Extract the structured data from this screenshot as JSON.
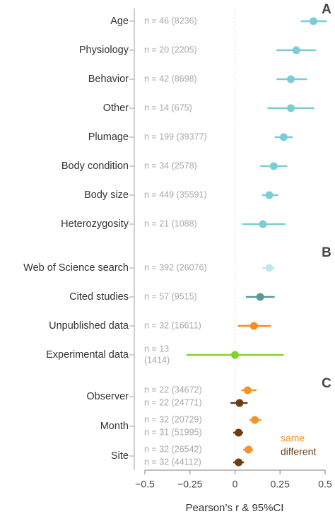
{
  "chart_data": {
    "type": "forest",
    "xlabel": "Pearson’s r & 95%CI",
    "xlim": [
      -0.5,
      0.5
    ],
    "xticks": [
      {
        "value": -0.5,
        "label": "−0.5"
      },
      {
        "value": -0.25,
        "label": "−0.25"
      },
      0,
      0.25,
      0.5
    ],
    "panels": [
      {
        "label": "A",
        "rows": [
          {
            "label": "Age",
            "n": [
              "n = 46 (8236)"
            ],
            "value": 0.435,
            "ci": [
              0.365,
              0.51
            ],
            "color": "#7ccdd3"
          },
          {
            "label": "Physiology",
            "n": [
              "n = 20 (2205)"
            ],
            "value": 0.34,
            "ci": [
              0.23,
              0.45
            ],
            "color": "#7ccdd3"
          },
          {
            "label": "Behavior",
            "n": [
              "n = 42 (8698)"
            ],
            "value": 0.31,
            "ci": [
              0.23,
              0.4
            ],
            "color": "#7ccdd3"
          },
          {
            "label": "Other",
            "n": [
              "n = 14 (675)"
            ],
            "value": 0.31,
            "ci": [
              0.18,
              0.44
            ],
            "color": "#7ccdd3"
          },
          {
            "label": "Plumage",
            "n": [
              "n = 199 (39377)"
            ],
            "value": 0.27,
            "ci": [
              0.22,
              0.32
            ],
            "color": "#7ccdd3"
          },
          {
            "label": "Body condition",
            "n": [
              "n = 34 (2578)"
            ],
            "value": 0.215,
            "ci": [
              0.14,
              0.29
            ],
            "color": "#7ccdd3"
          },
          {
            "label": "Body size",
            "n": [
              "n = 449 (35591)"
            ],
            "value": 0.19,
            "ci": [
              0.15,
              0.24
            ],
            "color": "#7ccdd3"
          },
          {
            "label": "Heterozygosity",
            "n": [
              "n = 21 (1088)"
            ],
            "value": 0.155,
            "ci": [
              0.04,
              0.28
            ],
            "color": "#7ccdd3"
          }
        ]
      },
      {
        "label": "B",
        "rows": [
          {
            "label": "Web of Science search",
            "n": [
              "n = 392 (26076)"
            ],
            "value": 0.19,
            "ci": [
              0.15,
              0.22
            ],
            "color": "#bfe8ee"
          },
          {
            "label": "Cited studies",
            "n": [
              "n = 57 (9515)"
            ],
            "value": 0.14,
            "ci": [
              0.06,
              0.22
            ],
            "color": "#5a979b"
          },
          {
            "label": "Unpublished data",
            "n": [
              "n = 32 (16611)"
            ],
            "value": 0.105,
            "ci": [
              0.015,
              0.2
            ],
            "color": "#f0901f"
          },
          {
            "label": "Experimental data",
            "n": [
              "n = 13",
              "(1414)"
            ],
            "value": 0.0,
            "ci": [
              -0.27,
              0.27
            ],
            "color": "#80d42a"
          }
        ]
      },
      {
        "label": "C",
        "series": [
          {
            "name": "same",
            "color": "#f0952a"
          },
          {
            "name": "different",
            "color": "#6e3c12"
          }
        ],
        "groups": [
          {
            "label": "Observer",
            "n": [
              "n = 22 (34672)",
              "n = 22 (24771)"
            ],
            "values": [
              0.07,
              0.025
            ],
            "ci": [
              [
                0.035,
                0.12
              ],
              [
                -0.025,
                0.07
              ]
            ]
          },
          {
            "label": "Month",
            "n": [
              "n = 32 (20729)",
              "n = 31 (51995)"
            ],
            "values": [
              0.11,
              0.02
            ],
            "ci": [
              [
                0.08,
                0.145
              ],
              [
                -0.01,
                0.045
              ]
            ]
          },
          {
            "label": "Site",
            "n": [
              "n = 32 (26542)",
              "n = 32 (44112)"
            ],
            "values": [
              0.075,
              0.02
            ],
            "ci": [
              [
                0.045,
                0.1
              ],
              [
                -0.01,
                0.05
              ]
            ]
          }
        ]
      }
    ]
  }
}
